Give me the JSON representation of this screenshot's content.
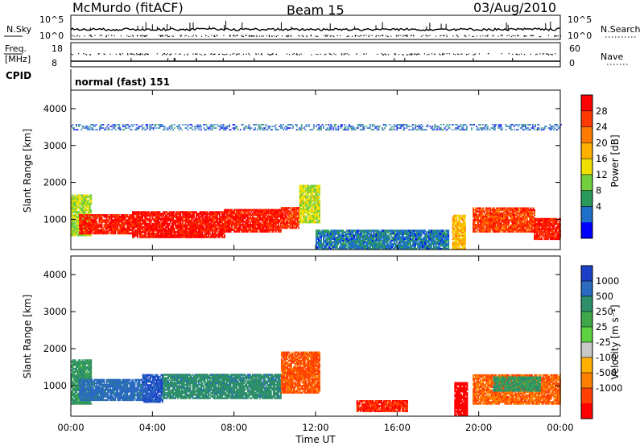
{
  "header": {
    "station": "McMurdo (fitACF)",
    "beam": "Beam 15",
    "date": "03/Aug/2010"
  },
  "noise_panel": {
    "left_label": "N.Sky",
    "right_label": "N.Search",
    "left_ticks": [
      "10^5",
      "10^0"
    ],
    "right_ticks": [
      "10^5",
      "10^0"
    ]
  },
  "freq_panel": {
    "left_label_1": "Freq.",
    "left_label_2": "[MHz]",
    "left_ticks": [
      "18",
      "8"
    ],
    "right_label": "Nave",
    "right_ticks": [
      "60",
      "0"
    ]
  },
  "cpid": {
    "label": "CPID",
    "text": "normal (fast) 151"
  },
  "power_panel": {
    "ylabel": "Slant Range [km]",
    "colorbar_label": "Power [dB]",
    "colorbar_ticks": [
      "28",
      "24",
      "20",
      "16",
      "12",
      "8",
      "4"
    ],
    "colorbar_colors": [
      "#ff0000",
      "#ff3a00",
      "#ff7a00",
      "#ffb000",
      "#f0e000",
      "#72d040",
      "#2a9a5a",
      "#1d6fc8",
      "#0000ff"
    ]
  },
  "velocity_panel": {
    "ylabel": "Slant Range [km]",
    "colorbar_label": "Velocity [m s⁻¹]",
    "colorbar_ticks": [
      "1000",
      "500",
      "250",
      "25",
      "-25",
      "-100",
      "-500",
      "-1000"
    ],
    "colorbar_colors": [
      "#1c3fc8",
      "#2a6abf",
      "#2d8f6a",
      "#3fa84a",
      "#5cd240",
      "#c8c8c8",
      "#ffb000",
      "#ff8000",
      "#ff4000",
      "#ff0000"
    ]
  },
  "x_axis": {
    "label": "Time UT",
    "ticks": [
      "00:00",
      "04:00",
      "08:00",
      "12:00",
      "16:00",
      "20:00",
      "00:00"
    ]
  },
  "chart_data": [
    {
      "type": "heatmap",
      "title": "Power [dB]",
      "xlabel": "Time UT",
      "ylabel": "Slant Range [km]",
      "x_range_hours": [
        0,
        24
      ],
      "ylim": [
        180,
        4500
      ],
      "y_ticks": [
        1000,
        2000,
        3000,
        4000
      ],
      "color_scale": [
        0,
        30
      ],
      "regions": [
        {
          "t0": 0.0,
          "t1": 1.0,
          "r0": 550,
          "r1": 1650,
          "value": 13
        },
        {
          "t0": 0.4,
          "t1": 3.0,
          "r0": 600,
          "r1": 1100,
          "value": 27
        },
        {
          "t0": 3.0,
          "t1": 7.5,
          "r0": 500,
          "r1": 1200,
          "value": 28
        },
        {
          "t0": 7.5,
          "t1": 10.3,
          "r0": 650,
          "r1": 1250,
          "value": 27
        },
        {
          "t0": 10.3,
          "t1": 11.2,
          "r0": 750,
          "r1": 1300,
          "value": 26
        },
        {
          "t0": 11.2,
          "t1": 12.2,
          "r0": 900,
          "r1": 1900,
          "value": 14
        },
        {
          "t0": 12.0,
          "t1": 18.5,
          "r0": 180,
          "r1": 700,
          "value": 6
        },
        {
          "t0": 18.7,
          "t1": 19.3,
          "r0": 180,
          "r1": 1100,
          "value": 18
        },
        {
          "t0": 19.7,
          "t1": 22.7,
          "r0": 650,
          "r1": 1300,
          "value": 25
        },
        {
          "t0": 22.7,
          "t1": 24.0,
          "r0": 450,
          "r1": 1000,
          "value": 27
        },
        {
          "t0": 0.0,
          "t1": 24.0,
          "r0": 3400,
          "r1": 3550,
          "value": 5
        }
      ]
    },
    {
      "type": "heatmap",
      "title": "Velocity [m s⁻¹]",
      "xlabel": "Time UT",
      "ylabel": "Slant Range [km]",
      "x_range_hours": [
        0,
        24
      ],
      "ylim": [
        180,
        4500
      ],
      "y_ticks": [
        1000,
        2000,
        3000,
        4000
      ],
      "color_scale": [
        -1000,
        1000
      ],
      "regions": [
        {
          "t0": 0.0,
          "t1": 1.0,
          "r0": 500,
          "r1": 1700,
          "value": 300
        },
        {
          "t0": 0.4,
          "t1": 3.5,
          "r0": 600,
          "r1": 1150,
          "value": 600
        },
        {
          "t0": 3.5,
          "t1": 4.5,
          "r0": 550,
          "r1": 1300,
          "value": 1000
        },
        {
          "t0": 4.5,
          "t1": 10.3,
          "r0": 650,
          "r1": 1300,
          "value": 400
        },
        {
          "t0": 10.3,
          "t1": 12.2,
          "r0": 800,
          "r1": 1900,
          "value": -300
        },
        {
          "t0": 14.0,
          "t1": 16.5,
          "r0": 300,
          "r1": 600,
          "value": -500
        },
        {
          "t0": 18.8,
          "t1": 19.4,
          "r0": 200,
          "r1": 1100,
          "value": -800
        },
        {
          "t0": 19.7,
          "t1": 24.0,
          "r0": 500,
          "r1": 1300,
          "value": -250
        },
        {
          "t0": 20.7,
          "t1": 23.0,
          "r0": 850,
          "r1": 1250,
          "value": 300
        }
      ]
    }
  ]
}
